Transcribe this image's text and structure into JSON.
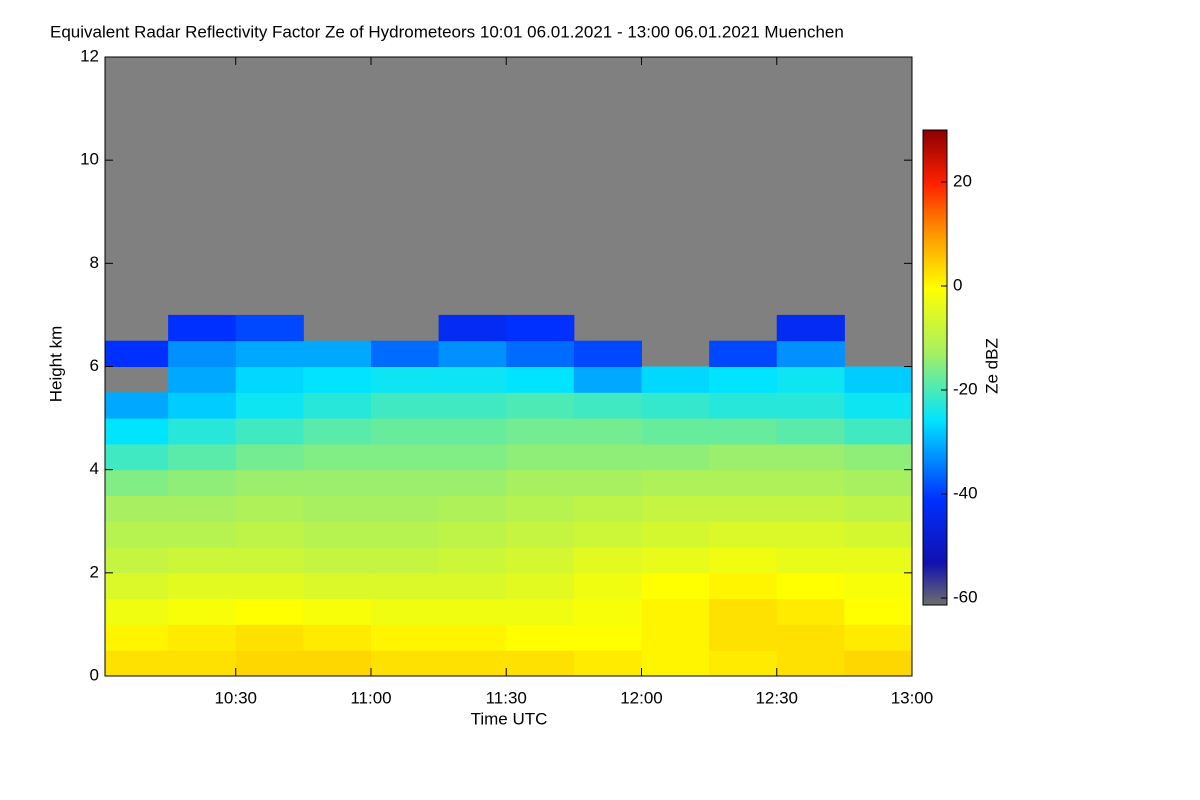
{
  "chart_data": {
    "type": "heatmap",
    "title": "Equivalent Radar Reflectivity Factor Ze of Hydrometeors   10:01 06.01.2021 - 13:00 06.01.2021 Muenchen",
    "xlabel": "Time UTC",
    "ylabel": "Height km",
    "zlabel": "Ze dBZ",
    "xlim": [
      10.0167,
      13.0
    ],
    "xticks": [
      {
        "value": 10.5,
        "label": "10:30"
      },
      {
        "value": 11,
        "label": "11:00"
      },
      {
        "value": 11.5,
        "label": "11:30"
      },
      {
        "value": 12,
        "label": "12:00"
      },
      {
        "value": 12.5,
        "label": "12:30"
      },
      {
        "value": 13,
        "label": "13:00"
      }
    ],
    "ylim": [
      0,
      12
    ],
    "yticks": [
      0,
      2,
      4,
      6,
      8,
      10,
      12
    ],
    "zlim": [
      -60,
      30
    ],
    "zticks": [
      -60,
      -40,
      -20,
      0,
      20
    ],
    "missing_color": "#808080",
    "colorscale": [
      [
        -60,
        "#6e6e6e"
      ],
      [
        -52,
        "#1010b0"
      ],
      [
        -40,
        "#0030ff"
      ],
      [
        -25,
        "#00e4ff"
      ],
      [
        -12,
        "#a8f060"
      ],
      [
        0,
        "#ffff00"
      ],
      [
        10,
        "#ff9a00"
      ],
      [
        20,
        "#ff2000"
      ],
      [
        30,
        "#8b0000"
      ]
    ],
    "xbins": [
      10.0167,
      10.25,
      10.5,
      10.75,
      11.0,
      11.25,
      11.5,
      11.75,
      12.0,
      12.25,
      12.5,
      12.75,
      13.0
    ],
    "ybins": [
      0,
      0.5,
      1,
      1.5,
      2,
      2.5,
      3,
      3.5,
      4,
      4.5,
      5,
      5.5,
      6,
      6.5,
      7
    ],
    "z": [
      [
        3,
        3,
        4,
        4,
        3,
        3,
        3,
        2,
        1,
        2,
        3,
        4
      ],
      [
        1,
        2,
        3,
        2,
        1,
        1,
        0,
        0,
        1,
        3,
        3,
        2
      ],
      [
        -2,
        -1,
        0,
        -1,
        -2,
        -2,
        -2,
        -1,
        1,
        3,
        2,
        0
      ],
      [
        -5,
        -4,
        -4,
        -5,
        -5,
        -5,
        -4,
        -2,
        0,
        1,
        0,
        -1
      ],
      [
        -8,
        -7,
        -7,
        -8,
        -8,
        -7,
        -6,
        -4,
        -3,
        -2,
        -3,
        -3
      ],
      [
        -10,
        -10,
        -9,
        -10,
        -10,
        -9,
        -8,
        -7,
        -6,
        -5,
        -5,
        -6
      ],
      [
        -12,
        -12,
        -11,
        -12,
        -12,
        -11,
        -10,
        -9,
        -8,
        -8,
        -8,
        -9
      ],
      [
        -15,
        -14,
        -13,
        -13,
        -13,
        -13,
        -12,
        -12,
        -11,
        -11,
        -11,
        -12
      ],
      [
        -20,
        -18,
        -16,
        -15,
        -15,
        -15,
        -14,
        -14,
        -14,
        -13,
        -13,
        -14
      ],
      [
        -25,
        -22,
        -20,
        -18,
        -17,
        -17,
        -16,
        -16,
        -17,
        -17,
        -18,
        -20
      ],
      [
        -30,
        -27,
        -24,
        -22,
        -20,
        -20,
        -19,
        -20,
        -21,
        -22,
        -22,
        -24
      ],
      [
        null,
        -30,
        -26,
        -25,
        -24,
        -24,
        -25,
        -30,
        -26,
        -25,
        -24,
        -27
      ],
      [
        -40,
        -32,
        -30,
        -30,
        -35,
        -32,
        -35,
        -38,
        null,
        -38,
        -32,
        null
      ],
      [
        null,
        -40,
        -38,
        null,
        null,
        -42,
        -40,
        null,
        null,
        null,
        -42,
        null
      ]
    ]
  }
}
